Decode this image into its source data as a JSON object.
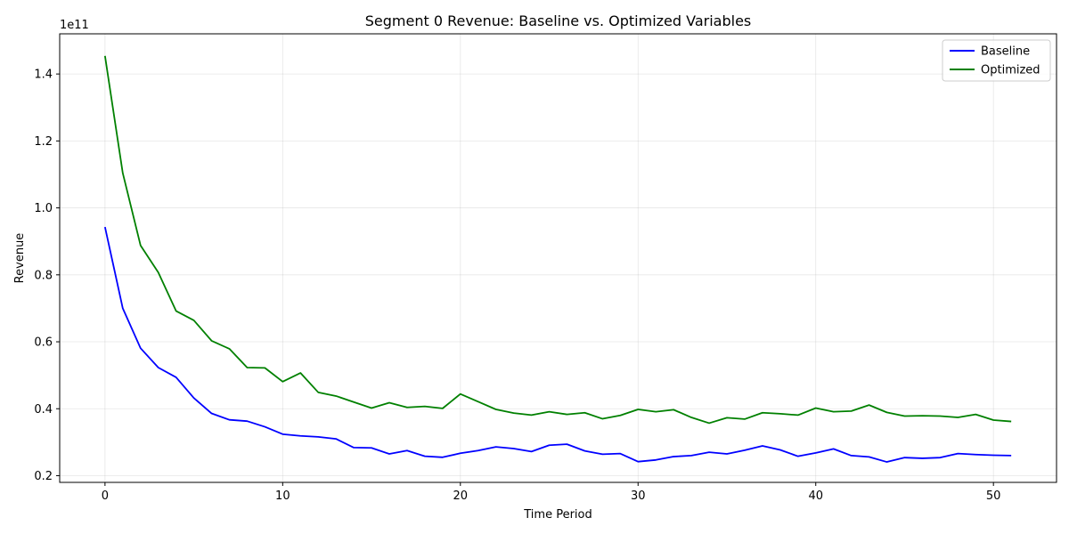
{
  "chart_data": {
    "type": "line",
    "title": "Segment 0 Revenue: Baseline vs. Optimized Variables",
    "xlabel": "Time Period",
    "ylabel": "Revenue",
    "y_offset_label": "1e11",
    "xlim": [
      -2.55,
      53.55
    ],
    "ylim": [
      0.18,
      1.52
    ],
    "x_ticks": [
      0,
      10,
      20,
      30,
      40,
      50
    ],
    "y_ticks": [
      0.2,
      0.4,
      0.6,
      0.8,
      1.0,
      1.2,
      1.4
    ],
    "y_tick_labels": [
      "0.2",
      "0.4",
      "0.6",
      "0.8",
      "1.0",
      "1.2",
      "1.4"
    ],
    "grid": true,
    "legend_position": "top-right",
    "x": [
      0,
      1,
      2,
      3,
      4,
      5,
      6,
      7,
      8,
      9,
      10,
      11,
      12,
      13,
      14,
      15,
      16,
      17,
      18,
      19,
      20,
      21,
      22,
      23,
      24,
      25,
      26,
      27,
      28,
      29,
      30,
      31,
      32,
      33,
      34,
      35,
      36,
      37,
      38,
      39,
      40,
      41,
      42,
      43,
      44,
      45,
      46,
      47,
      48,
      49,
      50,
      51
    ],
    "series": [
      {
        "name": "Baseline",
        "color": "#0000ff",
        "values": [
          0.943,
          0.7,
          0.581,
          0.523,
          0.494,
          0.432,
          0.386,
          0.367,
          0.363,
          0.346,
          0.324,
          0.319,
          0.316,
          0.31,
          0.284,
          0.283,
          0.265,
          0.275,
          0.258,
          0.255,
          0.267,
          0.275,
          0.286,
          0.281,
          0.272,
          0.291,
          0.294,
          0.274,
          0.264,
          0.266,
          0.242,
          0.247,
          0.257,
          0.26,
          0.27,
          0.265,
          0.276,
          0.289,
          0.277,
          0.258,
          0.268,
          0.28,
          0.26,
          0.256,
          0.241,
          0.254,
          0.252,
          0.254,
          0.266,
          0.263,
          0.261,
          0.26
        ]
      },
      {
        "name": "Optimized",
        "color": "#008000",
        "values": [
          1.454,
          1.104,
          0.888,
          0.807,
          0.692,
          0.664,
          0.603,
          0.579,
          0.523,
          0.522,
          0.481,
          0.507,
          0.449,
          0.438,
          0.42,
          0.402,
          0.418,
          0.404,
          0.407,
          0.401,
          0.444,
          0.421,
          0.398,
          0.387,
          0.381,
          0.391,
          0.383,
          0.388,
          0.37,
          0.38,
          0.398,
          0.391,
          0.397,
          0.374,
          0.357,
          0.373,
          0.369,
          0.388,
          0.385,
          0.381,
          0.402,
          0.391,
          0.393,
          0.411,
          0.389,
          0.378,
          0.379,
          0.378,
          0.374,
          0.383,
          0.366,
          0.362
        ]
      }
    ]
  }
}
